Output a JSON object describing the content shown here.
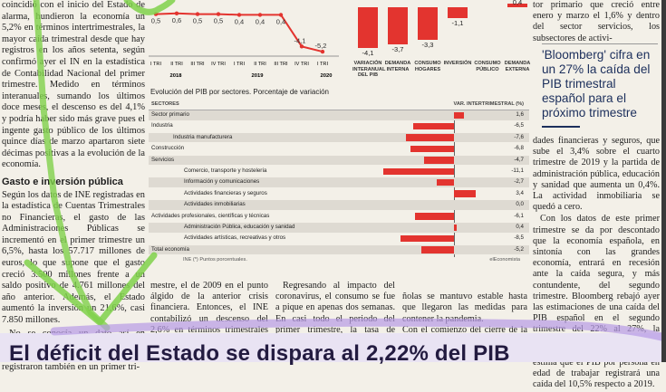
{
  "left_column": {
    "paragraphs": [
      "coincidió con el inicio del Estado de alarma, hundieron la economía un 5,2% en términos intertrimestrales, la mayor caída trimestral desde que hay registros en los años setenta, según confirmó ayer el IN en la estadística de Contabilidad Nacional del primer trimestre. Medido en términos interanuales, sumando los últimos doce meses, el descenso es del 4,1% y podría haber sido más grave pues el ingente gasto público de los últimos quince días de marzo apartaron siete décimas positivas a la evolución de la economía."
    ],
    "subhead": "Gasto e inversión pública",
    "paragraphs2": [
      "Según los datos de INE registradas en la estadística de Cuentas Trimestrales no Financieras, el gasto de las Administraciones Públicas se incrementó en el primer trimestre un 6,5%, hasta los 57.717 millones de euros, lo que supone que el gasto creció 3.500 millones frente a un saldo positivo de 4.761 millones del año anterior. Además, el Estado aumentó la inversión un 21,6%, casi 7.850 millones.",
      "No se conocía un dato así en Contabilidad Nacional desde 1995, pues las máximas caídas se registraron también en un primer tri-"
    ]
  },
  "top_chart": {
    "values": [
      0.5,
      0.6,
      0.5,
      0.5,
      0.4,
      0.4,
      0.4,
      -4.1,
      -5.2
    ],
    "quarter_labels": [
      "I TRI",
      "II TRI",
      "III TRI",
      "IV TRI",
      "I TRI",
      "II TRI",
      "III TRI",
      "IV TRI",
      "I TRI"
    ],
    "year_labels": [
      "2018",
      "2019",
      "2020"
    ]
  },
  "comp_chart": {
    "categories": [
      "VARIACIÓN INTERANUAL DEL PIB",
      "DEMANDA INTERNA",
      "CONSUMO HOGARES",
      "INVERSIÓN",
      "CONSUMO PÚBLICO",
      "DEMANDA EXTERNA"
    ],
    "values": [
      -4.1,
      -3.7,
      -3.3,
      -1.1,
      0.0,
      0.4
    ],
    "value_labels": [
      "-4,1",
      "-3,7",
      "-3,3",
      "-1,1",
      "",
      "0,4"
    ]
  },
  "sector_chart": {
    "title": "Evolución del PIB por sectores. Porcentaje de variación",
    "header_left": "SECTORES",
    "header_right": "VAR. INTERTRIMESTRAL (%)",
    "rows": [
      {
        "name": "Sector primario",
        "value": 1.6,
        "label": "1,6",
        "indent": 0,
        "shaded": true
      },
      {
        "name": "Industria",
        "value": -6.5,
        "label": "-6,5",
        "indent": 0,
        "shaded": false
      },
      {
        "name": "Industria manufacturera",
        "value": -7.6,
        "label": "-7,6",
        "indent": 2,
        "shaded": true
      },
      {
        "name": "Construcción",
        "value": -6.8,
        "label": "-6,8",
        "indent": 0,
        "shaded": false
      },
      {
        "name": "Servicios",
        "value": -4.7,
        "label": "-4,7",
        "indent": 0,
        "shaded": true
      },
      {
        "name": "Comercio, transporte y hostelería",
        "value": -11.1,
        "label": "-11,1",
        "indent": 3,
        "shaded": false
      },
      {
        "name": "Información y comunicaciones",
        "value": -2.7,
        "label": "-2,7",
        "indent": 3,
        "shaded": true
      },
      {
        "name": "Actividades financieras y seguros",
        "value": 3.4,
        "label": "3,4",
        "indent": 3,
        "shaded": false
      },
      {
        "name": "Actividades inmobiliarias",
        "value": 0.0,
        "label": "0,0",
        "indent": 3,
        "shaded": true
      },
      {
        "name": "Actividades profesionales, científicas y técnicas",
        "value": -6.1,
        "label": "-6,1",
        "indent": 0,
        "shaded": false
      },
      {
        "name": "Administración Pública, educación y sanidad",
        "value": 0.4,
        "label": "0,4",
        "indent": 3,
        "shaded": true
      },
      {
        "name": "Actividades artísticas, recreativas y otros",
        "value": -8.5,
        "label": "-8,5",
        "indent": 3,
        "shaded": false
      },
      {
        "name": "Total economía",
        "value": -5.2,
        "label": "-5,2",
        "indent": 0,
        "shaded": true
      }
    ],
    "footnote": "INE (*) Puntos porcentuales.",
    "source": "elEconomista"
  },
  "mid_columns": [
    "mestre, el de 2009 en el punto álgido de la anterior crisis financiera. Entonces, el INE contabilizó un descenso del 2,6% en términos trimestrales un 4,4% interanual.",
    "Regresando al impacto del coronavirus, el consumo se fue a pique en apenas dos semanas. En casi todo el periodo del primer trimestre, la tasa de consumo de las familias espa-",
    "ñolas se mantuvo estable hasta que llegaron las medidas para contener la pandemia.\nCon el comienzo del cierre de la economía, el gasto de los hogares"
  ],
  "right_column": {
    "top_text": "tor primario que creció entre enero y marzo el 1,6% y dentro del sector servicios, los subsectores de activi-",
    "pull_quote": "'Bloomberg' cifra en un 27% la caída del PIB trimestral español para el próximo trimestre",
    "paragraphs": [
      "dades financieras y seguros, que sube el 3,4% sobre el cuarto trimestre de 2019 y la partida de administración pública, educación y sanidad que aumenta un 0,4%. La actividad inmobiliaria se quedó a cero.",
      "Con los datos de este primer trimestre se da por descontado que la economía española, en sintonía con las grandes economía, entrará en recesión ante la caída segura, y más contundente, del segundo trimestre. Bloomberg rebajó ayer las estimaciones de una caída del PIB español en el segundo trimestre del 22% al 27%, la mayor de la UE y OCDE en este trimestre. Por su parte, Fedea estima que el PIB por persona en edad de trabajar registrará una caída del 10,5% respecto a 2019."
    ]
  },
  "headline": "El déficit del Estado se dispara al 2,22% del PIB",
  "colors": {
    "bar": "#e3342f",
    "highlight": "#7fd14a",
    "band": "#e9e3f3",
    "pull_quote": "#1c2f5c"
  }
}
